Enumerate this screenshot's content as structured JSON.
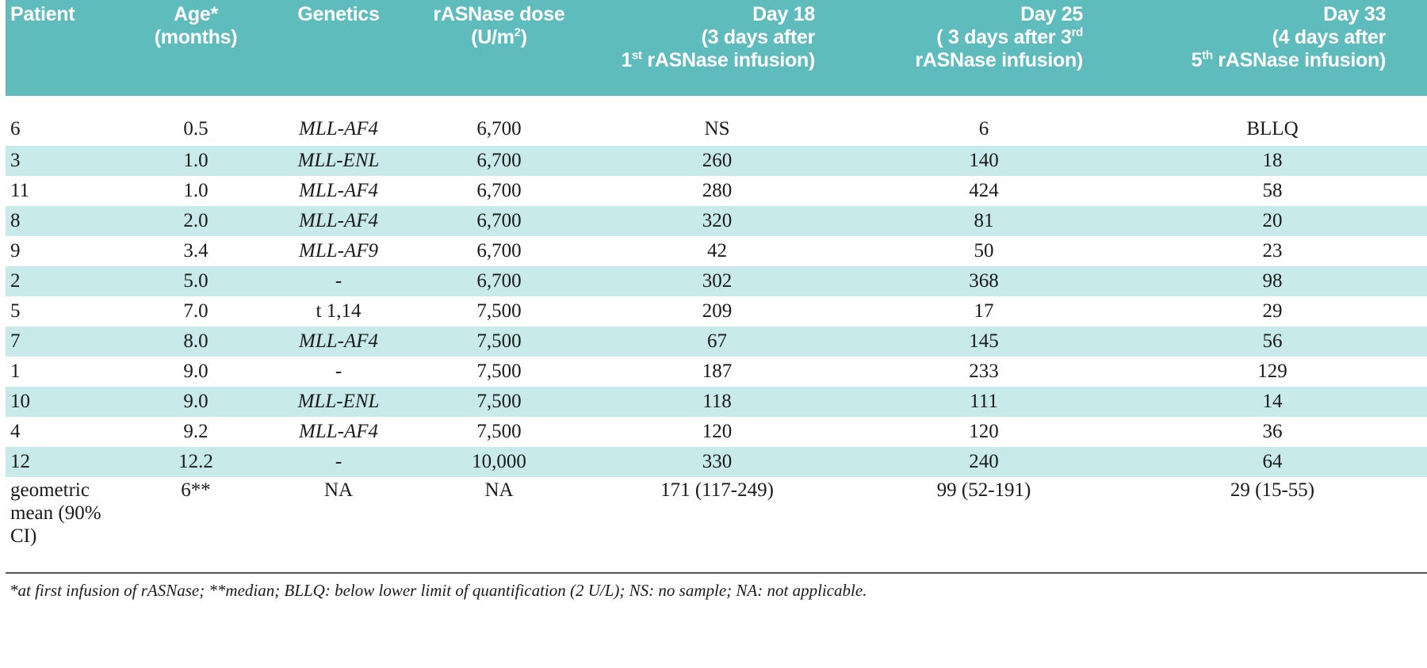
{
  "header": {
    "patient": "Patient",
    "age": [
      "Age*",
      "(months)"
    ],
    "genetics": "Genetics",
    "dose": [
      "rASNase dose",
      "(U/m",
      "2",
      ")"
    ],
    "day18": [
      "Day 18",
      "(3 days after",
      "1",
      "st",
      " rASNase infusion)"
    ],
    "day25": [
      "Day 25",
      "( 3 days after 3",
      "rd",
      "rASNase infusion)"
    ],
    "day33": [
      "Day 33",
      "(4 days after",
      "5",
      "th",
      " rASNase infusion)"
    ]
  },
  "rows": [
    [
      "6",
      "0.5",
      "MLL-AF4",
      "6,700",
      "NS",
      "6",
      "BLLQ"
    ],
    [
      "3",
      "1.0",
      "MLL-ENL",
      "6,700",
      "260",
      "140",
      "18"
    ],
    [
      "11",
      "1.0",
      "MLL-AF4",
      "6,700",
      "280",
      "424",
      "58"
    ],
    [
      "8",
      "2.0",
      "MLL-AF4",
      "6,700",
      "320",
      "81",
      "20"
    ],
    [
      "9",
      "3.4",
      "MLL-AF9",
      "6,700",
      "42",
      "50",
      "23"
    ],
    [
      "2",
      "5.0",
      "-",
      "6,700",
      "302",
      "368",
      "98"
    ],
    [
      "5",
      "7.0",
      "t 1,14",
      "7,500",
      "209",
      "17",
      "29"
    ],
    [
      "7",
      "8.0",
      "MLL-AF4",
      "7,500",
      "67",
      "145",
      "56"
    ],
    [
      "1",
      "9.0",
      "-",
      "7,500",
      "187",
      "233",
      "129"
    ],
    [
      "10",
      "9.0",
      "MLL-ENL",
      "7,500",
      "118",
      "111",
      "14"
    ],
    [
      "4",
      "9.2",
      "MLL-AF4",
      "7,500",
      "120",
      "120",
      "36"
    ],
    [
      "12",
      "12.2",
      "-",
      "10,000",
      "330",
      "240",
      "64"
    ]
  ],
  "mean_row": {
    "label": [
      "geometric",
      "mean (90% CI)"
    ],
    "age": "6**",
    "genetics": "NA",
    "dose": "NA",
    "day18": "171 (117-249)",
    "day25": "99 (52-191)",
    "day33": "29 (15-55)"
  },
  "footnote": "*at first infusion of rASNase; **median; BLLQ:  below lower limit of quantification (2 U/L); NS: no sample; NA: not applicable."
}
